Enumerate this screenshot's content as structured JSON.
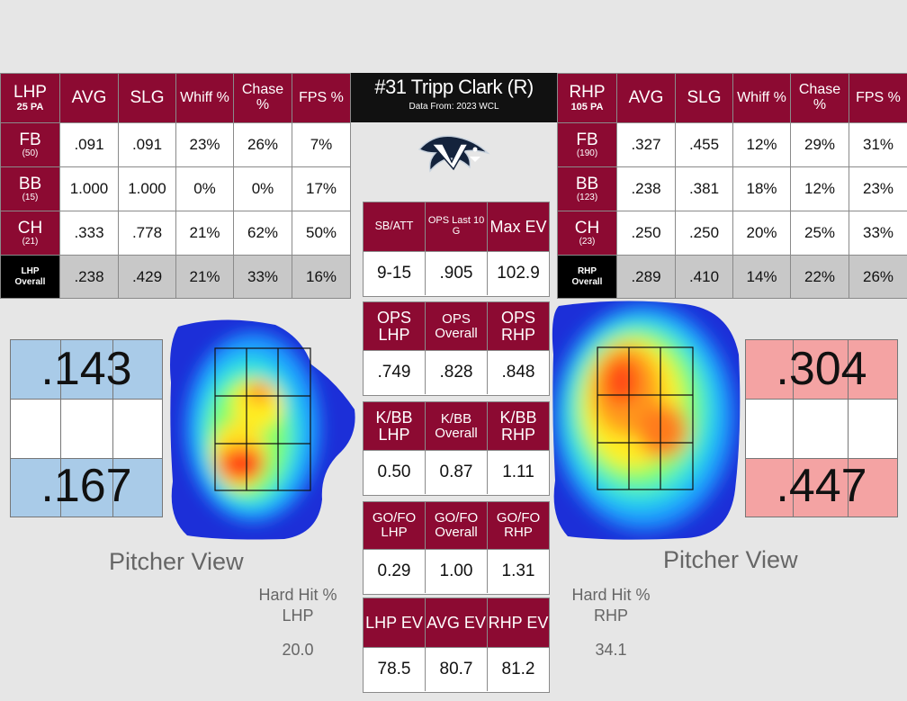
{
  "player": {
    "title": "#31 Tripp Clark (R)",
    "source": "Data From: 2023 WCL"
  },
  "columns": [
    "AVG",
    "SLG",
    "Whiff %",
    "Chase %",
    "FPS %"
  ],
  "lhp": {
    "side": "LHP",
    "pa": "25 PA",
    "rows": [
      {
        "pitch": "FB",
        "count": "(50)",
        "values": [
          ".091",
          ".091",
          "23%",
          "26%",
          "7%"
        ]
      },
      {
        "pitch": "BB",
        "count": "(15)",
        "values": [
          "1.000",
          "1.000",
          "0%",
          "0%",
          "17%"
        ]
      },
      {
        "pitch": "CH",
        "count": "(21)",
        "values": [
          ".333",
          ".778",
          "21%",
          "62%",
          "50%"
        ]
      }
    ],
    "overall": {
      "label_1": "LHP",
      "label_2": "Overall",
      "values": [
        ".238",
        ".429",
        "21%",
        "33%",
        "16%"
      ]
    }
  },
  "rhp": {
    "side": "RHP",
    "pa": "105 PA",
    "rows": [
      {
        "pitch": "FB",
        "count": "(190)",
        "values": [
          ".327",
          ".455",
          "12%",
          "29%",
          "31%"
        ]
      },
      {
        "pitch": "BB",
        "count": "(123)",
        "values": [
          ".238",
          ".381",
          "18%",
          "12%",
          "23%"
        ]
      },
      {
        "pitch": "CH",
        "count": "(23)",
        "values": [
          ".250",
          ".250",
          "20%",
          "25%",
          "33%"
        ]
      }
    ],
    "overall": {
      "label_1": "RHP",
      "label_2": "Overall",
      "values": [
        ".289",
        ".410",
        "14%",
        "22%",
        "26%"
      ]
    }
  },
  "center": {
    "block1": {
      "h": [
        "SB/ATT",
        "OPS Last 10 G",
        "Max EV"
      ],
      "v": [
        "9-15",
        ".905",
        "102.9"
      ]
    },
    "block2": {
      "h": [
        "OPS LHP",
        "OPS Overall",
        "OPS RHP"
      ],
      "v": [
        ".749",
        ".828",
        ".848"
      ]
    },
    "block3": {
      "h": [
        "K/BB LHP",
        "K/BB Overall",
        "K/BB RHP"
      ],
      "v": [
        "0.50",
        "0.87",
        "1.11"
      ]
    },
    "block4": {
      "h": [
        "GO/FO LHP",
        "GO/FO Overall",
        "GO/FO RHP"
      ],
      "v": [
        "0.29",
        "1.00",
        "1.31"
      ]
    },
    "block5": {
      "h": [
        "LHP EV",
        "AVG EV",
        "RHP EV"
      ],
      "v": [
        "78.5",
        "80.7",
        "81.2"
      ]
    }
  },
  "zones": {
    "left": {
      "top": ".143",
      "bottom": ".167",
      "color": "#a9cbe8"
    },
    "right": {
      "top": ".304",
      "bottom": ".447",
      "color": "#f4a3a3"
    }
  },
  "labels": {
    "pitcher_view_left": "Pitcher View",
    "pitcher_view_right": "Pitcher View",
    "hard_hit_left_1": "Hard Hit %",
    "hard_hit_left_2": "LHP",
    "hard_hit_right_1": "Hard Hit %",
    "hard_hit_right_2": "RHP",
    "hard_hit_left_value": "20.0",
    "hard_hit_right_value": "34.1"
  },
  "colors": {
    "maroon": "#8c0a32",
    "overall_gray": "#c8c8c8"
  }
}
